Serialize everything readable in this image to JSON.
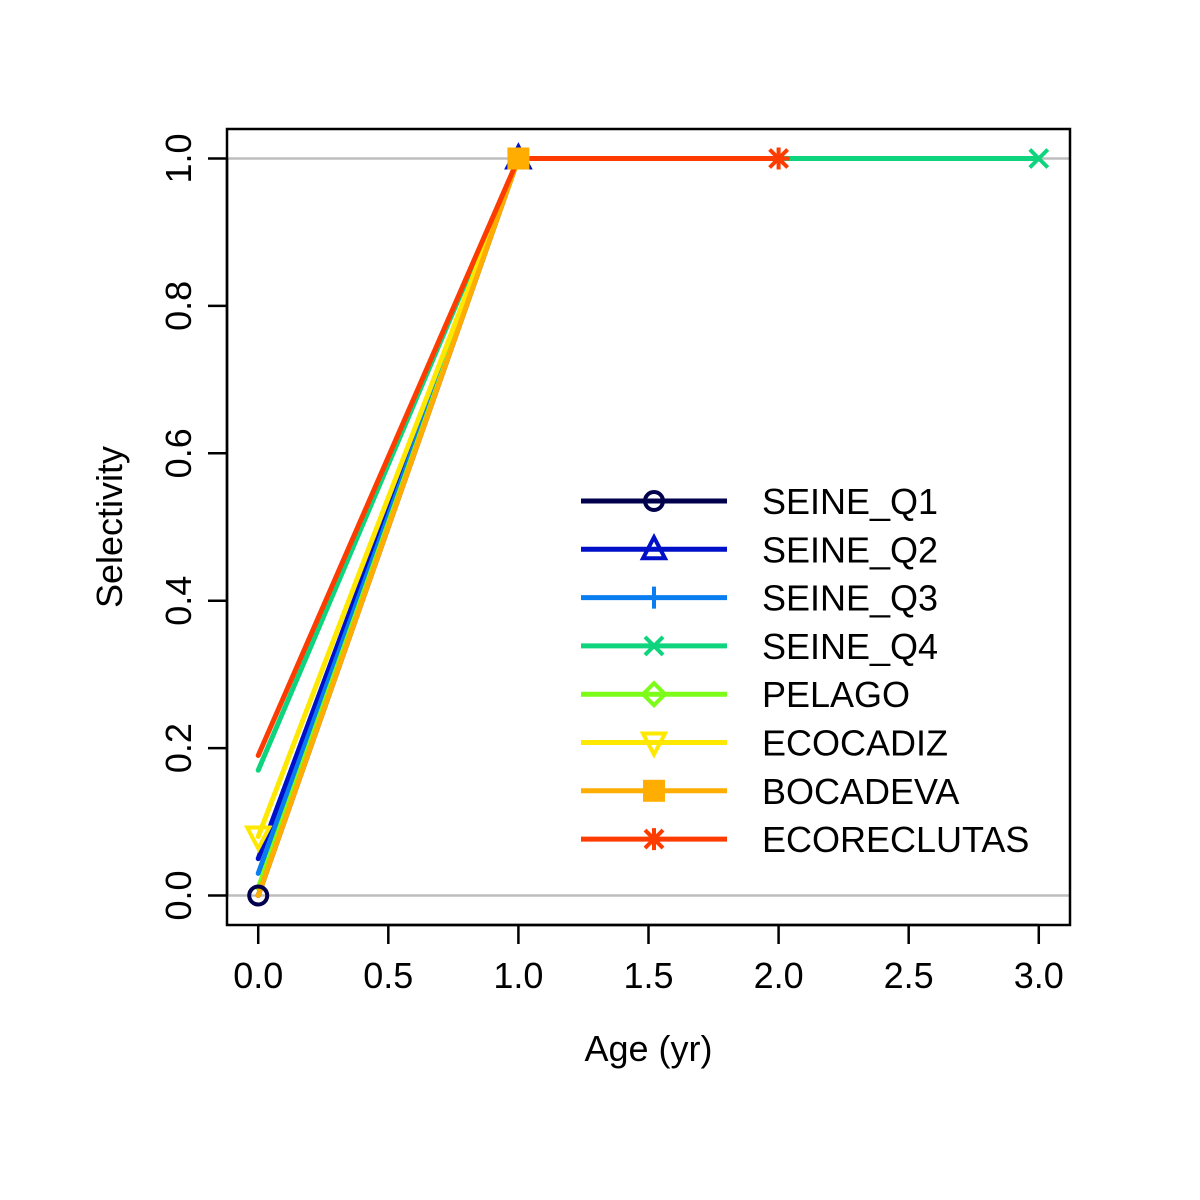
{
  "chart_data": {
    "type": "line",
    "title": "",
    "xlabel": "Age (yr)",
    "ylabel": "Selectivity",
    "xlim": [
      -0.12,
      3.12
    ],
    "ylim": [
      -0.04,
      1.04
    ],
    "xticks": [
      0.0,
      0.5,
      1.0,
      1.5,
      2.0,
      2.5,
      3.0
    ],
    "xtick_labels": [
      "0.0",
      "0.5",
      "1.0",
      "1.5",
      "2.0",
      "2.5",
      "3.0"
    ],
    "yticks": [
      0.0,
      0.2,
      0.4,
      0.6,
      0.8,
      1.0
    ],
    "ytick_labels": [
      "0.0",
      "0.2",
      "0.4",
      "0.6",
      "0.8",
      "1.0"
    ],
    "reference_lines_y": [
      0.0,
      1.0
    ],
    "legend_position": "center-right",
    "series": [
      {
        "name": "SEINE_Q1",
        "color": "#00004c",
        "marker": "circle",
        "x": [
          0,
          1
        ],
        "y": [
          0.0,
          1.0
        ],
        "marker_x": [
          0
        ]
      },
      {
        "name": "SEINE_Q2",
        "color": "#0010c8",
        "marker": "triangle-up",
        "x": [
          0,
          1
        ],
        "y": [
          0.05,
          1.0
        ],
        "marker_x": [
          1
        ]
      },
      {
        "name": "SEINE_Q3",
        "color": "#0a7ef0",
        "marker": "plus",
        "x": [
          0,
          1
        ],
        "y": [
          0.03,
          1.0
        ],
        "marker_x": []
      },
      {
        "name": "SEINE_Q4",
        "color": "#0ed47e",
        "marker": "cross",
        "x": [
          0,
          1,
          2,
          3
        ],
        "y": [
          0.17,
          1.0,
          1.0,
          1.0
        ],
        "marker_x": [
          3
        ]
      },
      {
        "name": "PELAGO",
        "color": "#7cfc18",
        "marker": "diamond",
        "x": [
          0,
          1
        ],
        "y": [
          0.01,
          1.0
        ],
        "marker_x": []
      },
      {
        "name": "ECOCADIZ",
        "color": "#ffe800",
        "marker": "triangle-down",
        "x": [
          0,
          1
        ],
        "y": [
          0.08,
          1.0
        ],
        "marker_x": [
          0
        ]
      },
      {
        "name": "BOCADEVA",
        "color": "#ffad00",
        "marker": "square",
        "x": [
          0,
          1
        ],
        "y": [
          0.0,
          1.0
        ],
        "marker_x": [
          1
        ]
      },
      {
        "name": "ECORECLUTAS",
        "color": "#ff3c00",
        "marker": "asterisk",
        "x": [
          0,
          1,
          2
        ],
        "y": [
          0.19,
          1.0,
          1.0
        ],
        "marker_x": [
          2
        ]
      }
    ]
  }
}
